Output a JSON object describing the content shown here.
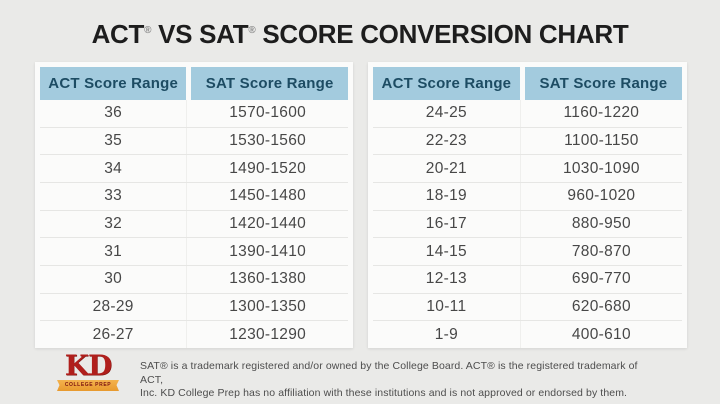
{
  "title": {
    "part1": "ACT",
    "reg1": "®",
    "part2": " VS SAT",
    "reg2": "®",
    "part3": " SCORE CONVERSION CHART"
  },
  "chart_data": [
    {
      "type": "table",
      "title": "ACT vs SAT conversion (upper scores)",
      "columns": [
        "ACT Score Range",
        "SAT Score Range"
      ],
      "rows": [
        [
          "36",
          "1570-1600"
        ],
        [
          "35",
          "1530-1560"
        ],
        [
          "34",
          "1490-1520"
        ],
        [
          "33",
          "1450-1480"
        ],
        [
          "32",
          "1420-1440"
        ],
        [
          "31",
          "1390-1410"
        ],
        [
          "30",
          "1360-1380"
        ],
        [
          "28-29",
          "1300-1350"
        ],
        [
          "26-27",
          "1230-1290"
        ]
      ]
    },
    {
      "type": "table",
      "title": "ACT vs SAT conversion (lower scores)",
      "columns": [
        "ACT Score Range",
        "SAT Score Range"
      ],
      "rows": [
        [
          "24-25",
          "1160-1220"
        ],
        [
          "22-23",
          "1100-1150"
        ],
        [
          "20-21",
          "1030-1090"
        ],
        [
          "18-19",
          "960-1020"
        ],
        [
          "16-17",
          "880-950"
        ],
        [
          "14-15",
          "780-870"
        ],
        [
          "12-13",
          "690-770"
        ],
        [
          "10-11",
          "620-680"
        ],
        [
          "1-9",
          "400-610"
        ]
      ]
    }
  ],
  "footer": {
    "logo": {
      "letters": "KD",
      "banner": "COLLEGE PREP"
    },
    "disclaimer_line1": "SAT® is a trademark registered and/or owned by the College Board. ACT® is the registered trademark of ACT,",
    "disclaimer_line2": "Inc. KD College Prep has no affiliation with these institutions and is not approved or endorsed by them."
  },
  "colors": {
    "background": "#eaeae8",
    "table_background": "#fbfbfa",
    "header_background": "#a3cbde",
    "header_text": "#1d4c63",
    "cell_text": "#474747",
    "logo_red": "#b01f1c",
    "banner_gold": "#e89a2e"
  }
}
